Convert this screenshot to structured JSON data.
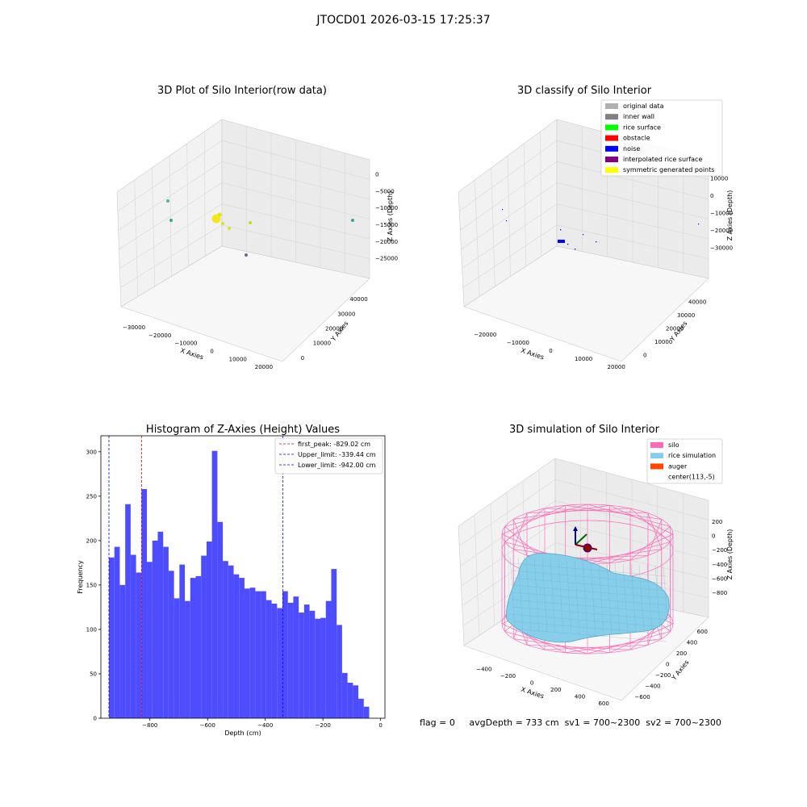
{
  "figure_title": "JTOCD01 2026-03-15 17:25:37",
  "footer": {
    "flag": "flag = 0",
    "avg_depth": "avgDepth = 733 cm",
    "sv1": "sv1 = 700~2300",
    "sv2": "sv2 = 700~2300"
  },
  "colors": {
    "histogram_bar": "#4d4dff",
    "silo": "#ff69b4",
    "rice": "#87ceeb",
    "auger": "#ff4500"
  },
  "chart_data": [
    {
      "type": "scatter",
      "title": "3D Plot of Silo Interior(row data)",
      "xlabel": "X Axies",
      "ylabel": "Y Axies",
      "zlabel": "Z Axies (Depth)",
      "x_ticks": [
        "−30000",
        "−20000",
        "−10000",
        "0",
        "10000",
        "20000"
      ],
      "y_ticks": [
        "0",
        "10000",
        "20000",
        "30000",
        "40000"
      ],
      "z_ticks": [
        "0",
        "−5000",
        "−10000",
        "−15000",
        "−20000",
        "−25000"
      ]
    },
    {
      "type": "scatter",
      "title": "3D classify of Silo Interior",
      "xlabel": "X Axies",
      "ylabel": "Y Axies",
      "zlabel": "Z Axies (Depth)",
      "x_ticks": [
        "−20000",
        "−10000",
        "0",
        "10000",
        "20000"
      ],
      "y_ticks": [
        "0",
        "10000",
        "20000",
        "30000",
        "40000"
      ],
      "z_ticks": [
        "10000",
        "0",
        "−10000",
        "−20000",
        "−30000"
      ],
      "legend": [
        {
          "label": "original data",
          "color": "#b0b0b0"
        },
        {
          "label": "inner wall",
          "color": "#808080"
        },
        {
          "label": "rice surface",
          "color": "#00ff00"
        },
        {
          "label": "obstacle",
          "color": "#ff0000"
        },
        {
          "label": "noise",
          "color": "#0000ff"
        },
        {
          "label": "interpolated rice surface",
          "color": "#800080"
        },
        {
          "label": "symmetric generated points",
          "color": "#ffff00"
        }
      ]
    },
    {
      "type": "bar",
      "title": "Histogram of Z-Axies (Height) Values",
      "xlabel": "Depth (cm)",
      "ylabel": "Frequency",
      "xlim": [
        -970,
        15
      ],
      "ylim": [
        0,
        318
      ],
      "x_ticks": [
        -800,
        -600,
        -400,
        -200,
        0
      ],
      "x_tick_labels": [
        "−800",
        "−600",
        "−400",
        "−200",
        "0"
      ],
      "y_ticks": [
        0,
        50,
        100,
        150,
        200,
        250,
        300
      ],
      "bin_start": -942,
      "bin_width": 18.8,
      "values": [
        181,
        193,
        150,
        241,
        184,
        164,
        258,
        176,
        200,
        210,
        193,
        166,
        135,
        173,
        132,
        158,
        160,
        183,
        199,
        301,
        221,
        177,
        172,
        162,
        158,
        146,
        147,
        143,
        143,
        133,
        129,
        124,
        143,
        130,
        137,
        119,
        128,
        121,
        112,
        113,
        132,
        168,
        105,
        51,
        40,
        37,
        22,
        13
      ],
      "vlines": [
        {
          "label": "first_peak: -829.02 cm",
          "x": -829.02,
          "color": "#ff0000"
        },
        {
          "label": "Upper_limit: -339.44 cm",
          "x": -339.44,
          "color": "#0000ff"
        },
        {
          "label": "Lower_limit: -942.00 cm",
          "x": -942.0,
          "color": "#0000ff"
        }
      ]
    },
    {
      "type": "area",
      "title": "3D simulation of Silo Interior",
      "xlabel": "X Axies",
      "ylabel": "Y Axies",
      "zlabel": "Z Axies (Depth)",
      "x_ticks": [
        "−400",
        "−200",
        "0",
        "200",
        "400",
        "600"
      ],
      "y_ticks": [
        "−600",
        "−400",
        "−200",
        "0",
        "200",
        "400",
        "600"
      ],
      "z_ticks": [
        "200",
        "0",
        "−200",
        "−400",
        "−600",
        "−800"
      ],
      "legend": [
        {
          "label": "silo",
          "color": "#ff69b4"
        },
        {
          "label": "rice simulation",
          "color": "#87ceeb"
        },
        {
          "label": "auger",
          "color": "#ff4500"
        },
        {
          "label": "center(113,-5)",
          "color": "#ffffff"
        }
      ]
    }
  ]
}
